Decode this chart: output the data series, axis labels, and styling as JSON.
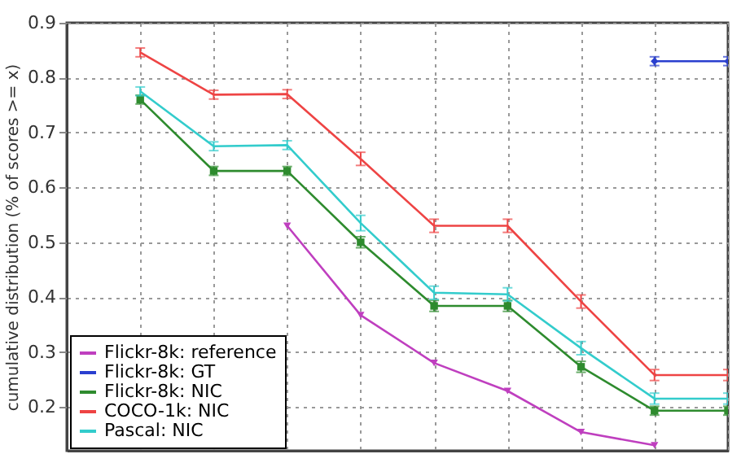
{
  "chart_data": {
    "type": "line",
    "ylabel": "cumulative distribution (% of scores >= x)",
    "categories": [
      null,
      null,
      null,
      null,
      null,
      null,
      null,
      null,
      null
    ],
    "ylim": [
      0.12,
      0.9
    ],
    "yticks": [
      0.2,
      0.3,
      0.4,
      0.5,
      0.6,
      0.7,
      0.8,
      0.9
    ],
    "tick_labels": "y",
    "grid": true,
    "legend": "bottom left",
    "line_style": "solid",
    "series": [
      {
        "name": "Flickr-8k: reference",
        "color": "#bf3fbf",
        "marker": "triangle",
        "values": [
          null,
          null,
          0.53,
          0.367,
          0.28,
          0.229,
          0.154,
          0.13,
          null
        ]
      },
      {
        "name": "Flickr-8k: GT",
        "color": "#2a3fcf",
        "marker": "diamond",
        "values": [
          null,
          null,
          null,
          null,
          null,
          null,
          null,
          0.83,
          0.83
        ],
        "errors": [
          null,
          null,
          null,
          null,
          null,
          null,
          null,
          0.008,
          0.008
        ]
      },
      {
        "name": "Flickr-8k: NIC",
        "color": "#2e8b2e",
        "marker": "square",
        "values": [
          0.76,
          0.63,
          0.63,
          0.5,
          0.384,
          0.384,
          0.273,
          0.193,
          0.193
        ],
        "errors": [
          0.008,
          0.008,
          0.008,
          0.01,
          0.01,
          0.01,
          0.01,
          0.008,
          0.008
        ]
      },
      {
        "name": "COCO-1k: NIC",
        "color": "#ee4444",
        "marker": "none",
        "values": [
          0.846,
          0.769,
          0.77,
          0.652,
          0.53,
          0.53,
          0.392,
          0.258,
          0.258
        ],
        "errors": [
          0.008,
          0.008,
          0.008,
          0.012,
          0.012,
          0.012,
          0.012,
          0.01,
          0.01
        ]
      },
      {
        "name": "Pascal: NIC",
        "color": "#33cccc",
        "marker": "none",
        "values": [
          0.775,
          0.675,
          0.677,
          0.535,
          0.408,
          0.405,
          0.307,
          0.215,
          0.215
        ],
        "errors": [
          0.008,
          0.008,
          0.008,
          0.014,
          0.012,
          0.012,
          0.012,
          0.01,
          0.01
        ]
      }
    ]
  }
}
